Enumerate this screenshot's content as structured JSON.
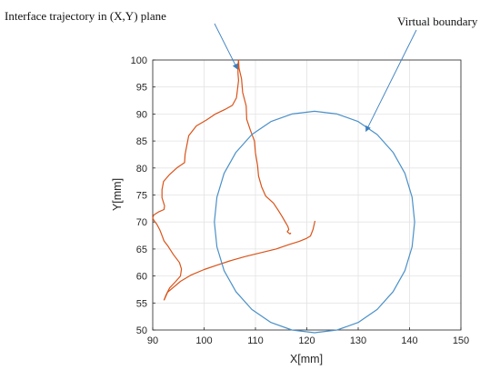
{
  "chart_data": {
    "type": "line",
    "title": "",
    "xlabel": "X[mm]",
    "ylabel": "Y[mm]",
    "xlim": [
      90,
      150
    ],
    "ylim": [
      50,
      100
    ],
    "xticks": [
      90,
      100,
      110,
      120,
      130,
      140,
      150
    ],
    "yticks": [
      50,
      55,
      60,
      65,
      70,
      75,
      80,
      85,
      90,
      95,
      100
    ],
    "grid": true,
    "legend": "none",
    "annotations": [
      {
        "text": "Interface trajectory in (X,Y) plane",
        "target": "trajectory",
        "point_to": [
          106.5,
          98.3
        ]
      },
      {
        "text": "Virtual boundary",
        "target": "boundary",
        "point_to": [
          131.5,
          86.8
        ]
      }
    ],
    "series": [
      {
        "key": "trajectory",
        "color": "#d95319",
        "x": [
          92.2,
          92.6,
          93.3,
          94.5,
          95.4,
          95.6,
          95.2,
          94.0,
          93.0,
          92.2,
          91.8,
          91.4,
          90.8,
          90.3,
          90.0,
          90.2,
          91.2,
          92.2,
          92.3,
          91.8,
          91.8,
          92.1,
          93.3,
          94.8,
          96.2,
          96.3,
          96.6,
          97.0,
          98.5,
          100.5,
          102.2,
          104.0,
          105.5,
          106.3,
          106.5,
          106.7,
          106.6,
          106.6,
          106.7,
          106.8,
          107.3,
          107.5,
          108.2,
          108.3,
          109.0,
          109.8,
          110.0,
          110.4,
          110.6,
          111.2,
          112.0,
          113.5,
          114.4,
          115.2,
          115.8,
          116.3,
          116.5,
          116.2,
          116.7,
          116.9
        ],
        "y": [
          55.5,
          56.5,
          57.8,
          59.0,
          60.0,
          61.3,
          62.5,
          64.0,
          65.5,
          66.5,
          67.5,
          68.5,
          69.6,
          70.2,
          70.7,
          71.3,
          71.9,
          72.3,
          73.0,
          74.5,
          76.0,
          77.5,
          78.8,
          80.1,
          81.0,
          82.5,
          84.0,
          86.0,
          87.8,
          88.9,
          90.0,
          90.8,
          91.6,
          93.0,
          94.5,
          96.2,
          97.5,
          99.0,
          100.0,
          98.5,
          96.5,
          94.0,
          91.5,
          89.0,
          87.0,
          85.0,
          82.8,
          80.5,
          78.5,
          76.5,
          74.8,
          73.5,
          72.2,
          71.0,
          70.0,
          69.2,
          68.6,
          68.2,
          67.8,
          68.0
        ]
      },
      {
        "key": "trajectory-branch",
        "color": "#d95319",
        "x": [
          92.2,
          92.9,
          95.4,
          97.5,
          100.0,
          102.5,
          105.0,
          108.0,
          111.0,
          114.0,
          116.5,
          118.5,
          119.8,
          120.7,
          121.2,
          121.6
        ],
        "y": [
          55.5,
          57.0,
          59.0,
          60.2,
          61.2,
          62.0,
          62.8,
          63.6,
          64.3,
          65.0,
          65.8,
          66.4,
          66.9,
          67.4,
          68.6,
          70.2
        ]
      },
      {
        "key": "boundary",
        "color": "#4a90c8",
        "x": [
          141.0,
          140.5,
          139.1,
          136.8,
          133.7,
          130.0,
          125.9,
          121.5,
          117.1,
          113.0,
          109.3,
          106.2,
          103.9,
          102.5,
          102.0,
          102.5,
          103.9,
          106.2,
          109.3,
          113.0,
          117.1,
          121.5,
          125.9,
          130.0,
          133.7,
          136.8,
          139.1,
          140.5,
          141.0
        ],
        "y": [
          70.0,
          74.6,
          79.0,
          82.9,
          86.2,
          88.6,
          90.0,
          90.5,
          90.0,
          88.6,
          86.2,
          82.9,
          79.0,
          74.6,
          70.0,
          65.4,
          61.0,
          57.1,
          53.8,
          51.4,
          50.0,
          49.5,
          50.0,
          51.4,
          53.8,
          57.1,
          61.0,
          65.4,
          70.0
        ]
      }
    ]
  }
}
